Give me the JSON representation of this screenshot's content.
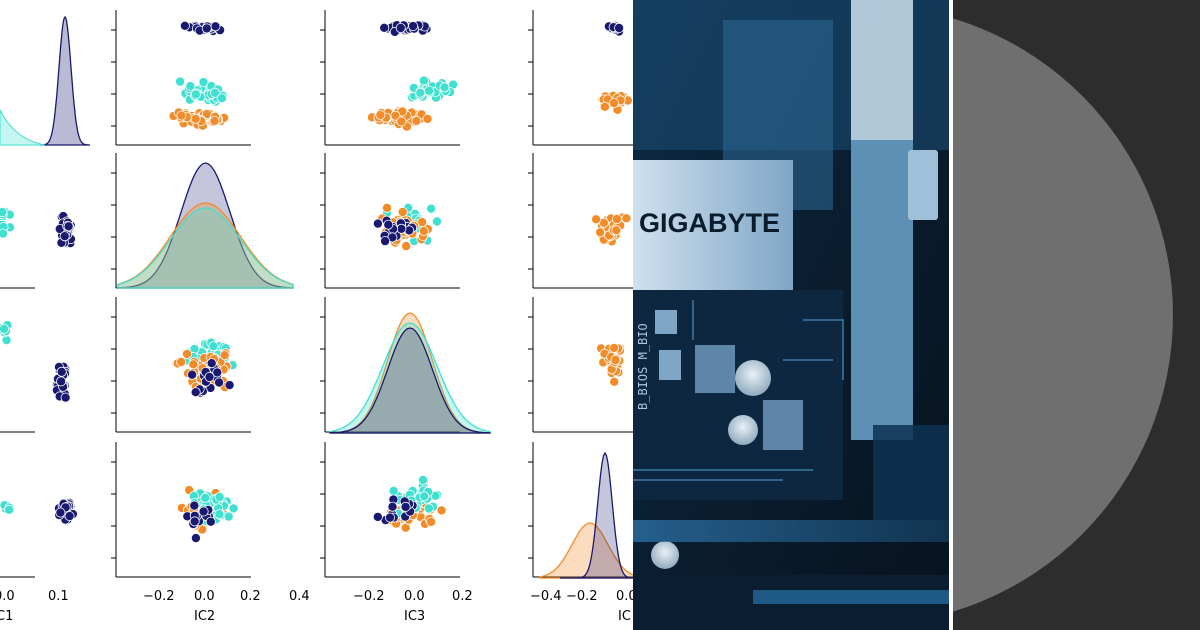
{
  "colors": {
    "navy": "#191970",
    "turquoise": "#40E0D0",
    "orange": "#F28C28",
    "board_dark": "#0a1b2c",
    "board_blue": "#2b6fa3",
    "disc_gray": "#6f6f6f",
    "disc_bg": "#2d2d2d"
  },
  "pairplot": {
    "axis_labels": {
      "ic1": "C1",
      "ic2": "IC2",
      "ic3": "IC3",
      "ic4": "IC"
    },
    "ticks": {
      "col1": [
        "0.0",
        "0.1"
      ],
      "col2": [
        "−0.2",
        "0.0",
        "0.2",
        "0.4"
      ],
      "col3": [
        "−0.2",
        "0.0",
        "0.2"
      ],
      "col4": [
        "−0.4",
        "−0.2",
        "0.0"
      ]
    }
  },
  "photo": {
    "brand_text": "GIGABYTE",
    "silk_text": "B_BIOS   M_BIO"
  },
  "disc": {
    "label": ""
  }
}
